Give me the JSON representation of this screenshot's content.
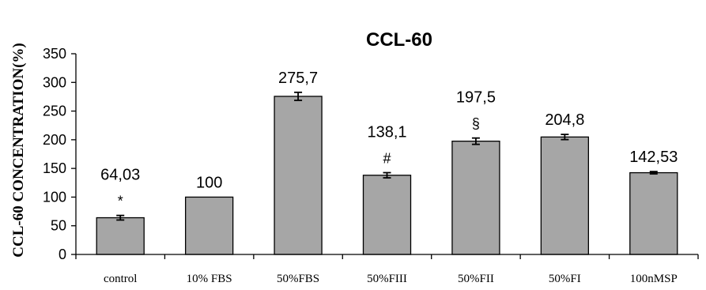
{
  "chart_data": {
    "type": "bar",
    "title": "CCL-60",
    "ylabel": "CCL-60  CONCENTRATION(%)",
    "xlabel": "",
    "ylim": [
      0,
      350
    ],
    "yticks": [
      0,
      50,
      100,
      150,
      200,
      250,
      300,
      350
    ],
    "grid": false,
    "legend": "none",
    "bar_color": "#a6a6a6",
    "categories": [
      "control",
      "10% FBS",
      "50%FBS",
      "50%FIII",
      "50%FII",
      "50%FI",
      "100nMSP"
    ],
    "values": [
      64.03,
      100,
      275.7,
      138.1,
      197.5,
      204.8,
      142.53
    ],
    "errors": [
      4,
      0,
      7,
      4.5,
      5.5,
      4.5,
      2
    ],
    "data_labels": [
      "64,03",
      "100",
      "275,7",
      "138,1",
      "197,5",
      "204,8",
      "142,53"
    ],
    "significance": [
      "*",
      "",
      "",
      "#",
      "§",
      "",
      ""
    ]
  }
}
